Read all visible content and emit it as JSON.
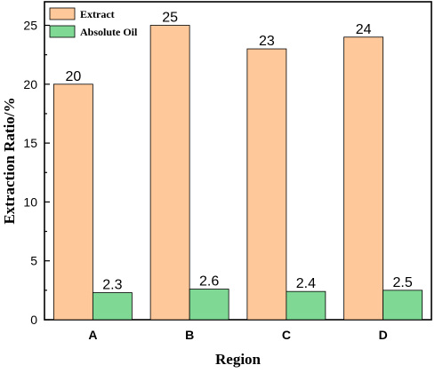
{
  "chart_data": {
    "type": "bar",
    "categories": [
      "A",
      "B",
      "C",
      "D"
    ],
    "series": [
      {
        "name": "Extract",
        "values": [
          20,
          25,
          23,
          24
        ],
        "labels": [
          "20",
          "25",
          "23",
          "24"
        ],
        "color": "#ffc89a"
      },
      {
        "name": "Absolute Oil",
        "values": [
          2.3,
          2.6,
          2.4,
          2.5
        ],
        "labels": [
          "2.3",
          "2.6",
          "2.4",
          "2.5"
        ],
        "color": "#7fd994"
      }
    ],
    "xlabel": "Region",
    "ylabel": "Extraction Ratio/%",
    "ylim": [
      0,
      27
    ],
    "yticks": [
      0,
      5,
      10,
      15,
      20,
      25
    ],
    "grid": false,
    "legend_position": "top-left"
  }
}
